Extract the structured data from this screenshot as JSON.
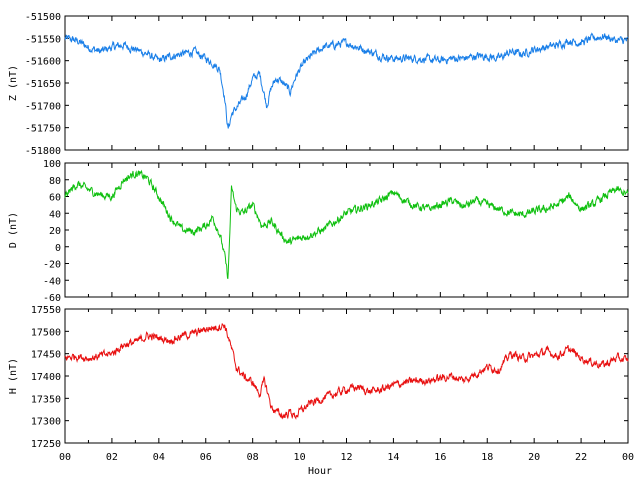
{
  "chart_data": {
    "type": "line",
    "xlabel": "Hour",
    "x_ticks": [
      "00",
      "02",
      "04",
      "06",
      "08",
      "10",
      "12",
      "14",
      "16",
      "18",
      "20",
      "22",
      "00"
    ],
    "xlim": [
      0,
      24
    ],
    "grid": false,
    "panels": [
      {
        "id": "z",
        "ylabel": "Z (nT)",
        "ylim": [
          -51800,
          -51500
        ],
        "yticks": [
          -51500,
          -51550,
          -51600,
          -51650,
          -51700,
          -51750,
          -51800
        ],
        "color": "#1a7fe8",
        "series": [
          {
            "x": [
              0,
              0.5,
              1,
              1.5,
              2,
              2.5,
              3,
              3.5,
              4,
              4.5,
              5,
              5.5,
              6,
              6.3,
              6.6,
              6.8,
              6.95,
              7.1,
              7.4,
              7.7,
              8.0,
              8.3,
              8.6,
              8.8,
              9.0,
              9.3,
              9.6,
              9.8,
              10.0,
              10.3,
              10.6,
              11.0,
              11.5,
              12,
              12.5,
              13,
              13.5,
              14,
              15,
              16,
              16.5,
              17,
              17.5,
              18,
              18.5,
              19,
              19.5,
              20,
              20.5,
              21,
              21.5,
              22,
              22.5,
              23,
              23.5,
              24
            ],
            "values": [
              -51550,
              -51555,
              -51570,
              -51580,
              -51570,
              -51565,
              -51575,
              -51585,
              -51600,
              -51590,
              -51585,
              -51580,
              -51595,
              -51605,
              -51620,
              -51680,
              -51755,
              -51720,
              -51700,
              -51680,
              -51640,
              -51630,
              -51700,
              -51660,
              -51640,
              -51650,
              -51670,
              -51640,
              -51620,
              -51600,
              -51585,
              -51570,
              -51565,
              -51560,
              -51570,
              -51580,
              -51590,
              -51595,
              -51595,
              -51600,
              -51595,
              -51595,
              -51590,
              -51590,
              -51595,
              -51580,
              -51585,
              -51575,
              -51570,
              -51565,
              -51555,
              -51560,
              -51550,
              -51545,
              -51555,
              -51555
            ]
          }
        ]
      },
      {
        "id": "d",
        "ylabel": "D (nT)",
        "ylim": [
          -60,
          100
        ],
        "yticks": [
          100,
          80,
          60,
          40,
          20,
          0,
          -20,
          -40,
          -60
        ],
        "color": "#10c010",
        "series": [
          {
            "x": [
              0,
              0.5,
              1,
              1.5,
              2,
              2.5,
              3,
              3.5,
              4,
              4.5,
              5,
              5.5,
              6,
              6.3,
              6.6,
              6.8,
              6.95,
              7.1,
              7.3,
              7.6,
              8.0,
              8.4,
              8.8,
              9.2,
              9.5,
              10.0,
              10.5,
              11,
              11.5,
              12,
              12.5,
              13,
              13.5,
              14,
              14.5,
              15,
              15.5,
              16,
              16.5,
              17,
              17.5,
              18,
              18.5,
              19,
              19.5,
              20,
              20.5,
              21,
              21.5,
              22,
              22.5,
              23,
              23.5,
              24
            ],
            "values": [
              60,
              75,
              68,
              62,
              60,
              80,
              88,
              82,
              60,
              35,
              20,
              18,
              25,
              35,
              15,
              -10,
              -38,
              70,
              45,
              40,
              50,
              25,
              30,
              15,
              5,
              10,
              15,
              20,
              30,
              40,
              45,
              50,
              55,
              65,
              55,
              48,
              45,
              50,
              55,
              48,
              55,
              50,
              45,
              40,
              38,
              42,
              45,
              50,
              60,
              45,
              50,
              60,
              68,
              62
            ]
          }
        ]
      },
      {
        "id": "h",
        "ylabel": "H (nT)",
        "ylim": [
          17250,
          17550
        ],
        "yticks": [
          17550,
          17500,
          17450,
          17400,
          17350,
          17300,
          17250
        ],
        "color": "#e81010",
        "series": [
          {
            "x": [
              0,
              0.5,
              1,
              1.5,
              2,
              2.5,
              3,
              3.5,
              4,
              4.5,
              5,
              5.5,
              6,
              6.5,
              6.8,
              7.0,
              7.3,
              7.6,
              8.0,
              8.3,
              8.5,
              8.8,
              9.0,
              9.3,
              9.6,
              9.8,
              10.0,
              10.5,
              11,
              11.5,
              12,
              12.5,
              13,
              13.5,
              14,
              14.5,
              15,
              15.5,
              16,
              16.5,
              17,
              17.5,
              18,
              18.5,
              19,
              19.5,
              20,
              20.5,
              21,
              21.5,
              22,
              22.5,
              23,
              23.5,
              24
            ],
            "values": [
              17440,
              17445,
              17440,
              17445,
              17450,
              17470,
              17475,
              17490,
              17485,
              17480,
              17490,
              17495,
              17505,
              17510,
              17515,
              17480,
              17420,
              17400,
              17385,
              17360,
              17390,
              17330,
              17320,
              17310,
              17320,
              17310,
              17320,
              17340,
              17350,
              17360,
              17370,
              17375,
              17365,
              17370,
              17380,
              17385,
              17390,
              17390,
              17395,
              17400,
              17390,
              17405,
              17420,
              17415,
              17450,
              17440,
              17445,
              17455,
              17445,
              17460,
              17440,
              17430,
              17425,
              17440,
              17435
            ]
          }
        ]
      }
    ]
  }
}
